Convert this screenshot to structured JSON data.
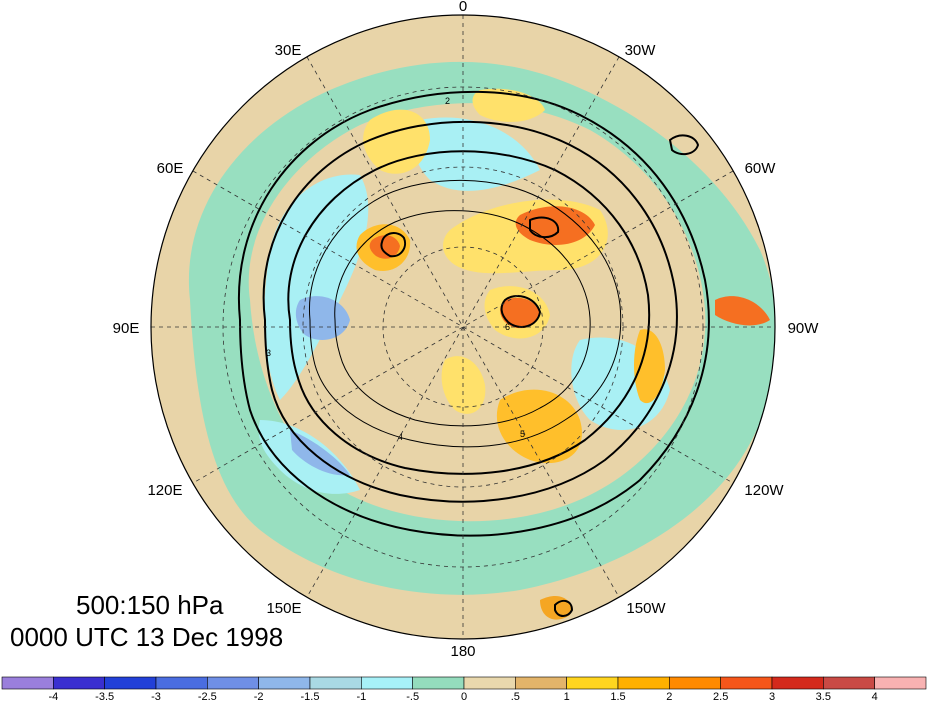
{
  "map": {
    "projection": "north polar stereographic",
    "longitude_labels": [
      {
        "text": "0",
        "lon": 0
      },
      {
        "text": "30W",
        "lon": -30
      },
      {
        "text": "60W",
        "lon": -60
      },
      {
        "text": "90W",
        "lon": -90
      },
      {
        "text": "120W",
        "lon": -120
      },
      {
        "text": "150W",
        "lon": -150
      },
      {
        "text": "180",
        "lon": 180
      },
      {
        "text": "150E",
        "lon": 150
      },
      {
        "text": "120E",
        "lon": 120
      },
      {
        "text": "90E",
        "lon": 90
      },
      {
        "text": "60E",
        "lon": 60
      },
      {
        "text": "30E",
        "lon": 30
      }
    ],
    "contour_labels": [
      "2",
      "3",
      "4",
      "5",
      "6"
    ],
    "colors": {
      "ocean_neutral": "#e8d4a8",
      "low_light": "#98dfc0",
      "low_mid": "#a9f0f4",
      "low_strong": "#a7d9e6",
      "high_light": "#ffe16b",
      "high_mid": "#ffbf2b",
      "high_strong": "#f56f21"
    }
  },
  "caption": {
    "line1": "500:150 hPa",
    "line2": "0000 UTC 13 Dec 1998"
  },
  "colorbar": {
    "labels": [
      "-4",
      "-3.5",
      "-3",
      "-2.5",
      "-2",
      "-1.5",
      "-1",
      "-.5",
      "0",
      ".5",
      "1",
      "1.5",
      "2",
      "2.5",
      "3",
      "3.5",
      "4"
    ],
    "colors": [
      "#9a7fdc",
      "#3a2fd0",
      "#2240d8",
      "#4a6de0",
      "#6f8fe6",
      "#8fb7ea",
      "#a9d9e4",
      "#a7f1f8",
      "#94dcbd",
      "#e9d8ad",
      "#e3b46a",
      "#ffd51f",
      "#ffb000",
      "#ff8a00",
      "#f5561a",
      "#d42a1c",
      "#c94a45",
      "#f8b2b2"
    ]
  }
}
